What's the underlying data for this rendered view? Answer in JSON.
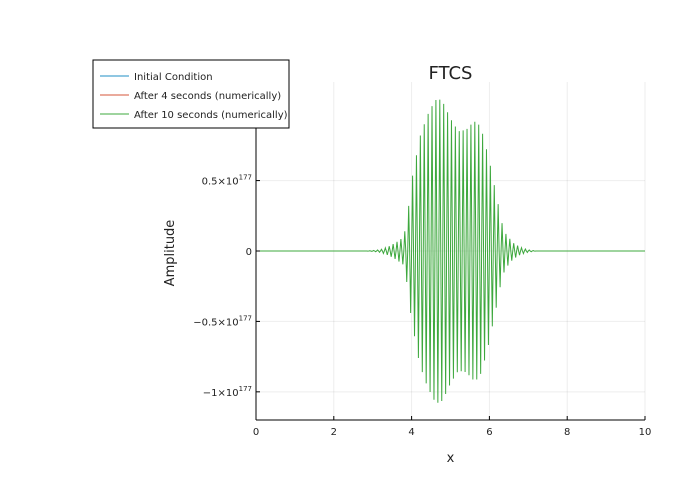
{
  "chart_data": {
    "type": "line",
    "title": "FTCS",
    "xlabel": "x",
    "ylabel": "Amplitude",
    "xlim": [
      0,
      10
    ],
    "ylim": [
      -1.2,
      1.2
    ],
    "y_scale_note": "values in units of 1e177",
    "grid": true,
    "legend_position": "top-left",
    "x_ticks": [
      {
        "value": 0,
        "label": "0"
      },
      {
        "value": 2,
        "label": "2"
      },
      {
        "value": 4,
        "label": "4"
      },
      {
        "value": 6,
        "label": "6"
      },
      {
        "value": 8,
        "label": "8"
      },
      {
        "value": 10,
        "label": "10"
      }
    ],
    "y_ticks": [
      {
        "value": 0.5,
        "mantissa": "0.5×10",
        "exp": "177"
      },
      {
        "value": 0,
        "mantissa": "0",
        "exp": ""
      },
      {
        "value": -0.5,
        "mantissa": "−0.5×10",
        "exp": "177"
      },
      {
        "value": -1,
        "mantissa": "−1×10",
        "exp": "177"
      }
    ],
    "series": [
      {
        "name": "Initial Condition",
        "color": "#1f8fc4"
      },
      {
        "name": "After 4 seconds (numerically)",
        "color": "#d4553a"
      },
      {
        "name": "After 10 seconds (numerically)",
        "color": "#3da83d"
      }
    ],
    "envelope": {
      "x": [
        0,
        2.8,
        3.0,
        3.2,
        3.4,
        3.6,
        3.8,
        3.9,
        4.0,
        4.1,
        4.2,
        4.4,
        4.6,
        4.7,
        4.8,
        5.0,
        5.2,
        5.4,
        5.6,
        5.7,
        5.8,
        6.0,
        6.1,
        6.2,
        6.3,
        6.4,
        6.6,
        6.8,
        7.0,
        7.2,
        10
      ],
      "y": [
        0,
        0,
        0.003,
        0.01,
        0.03,
        0.06,
        0.1,
        0.26,
        0.5,
        0.64,
        0.8,
        0.96,
        1.07,
        1.08,
        1.06,
        0.94,
        0.85,
        0.86,
        0.92,
        0.91,
        0.86,
        0.64,
        0.5,
        0.37,
        0.22,
        0.13,
        0.06,
        0.025,
        0.008,
        0,
        0
      ]
    },
    "oscillation_period": 0.1
  }
}
